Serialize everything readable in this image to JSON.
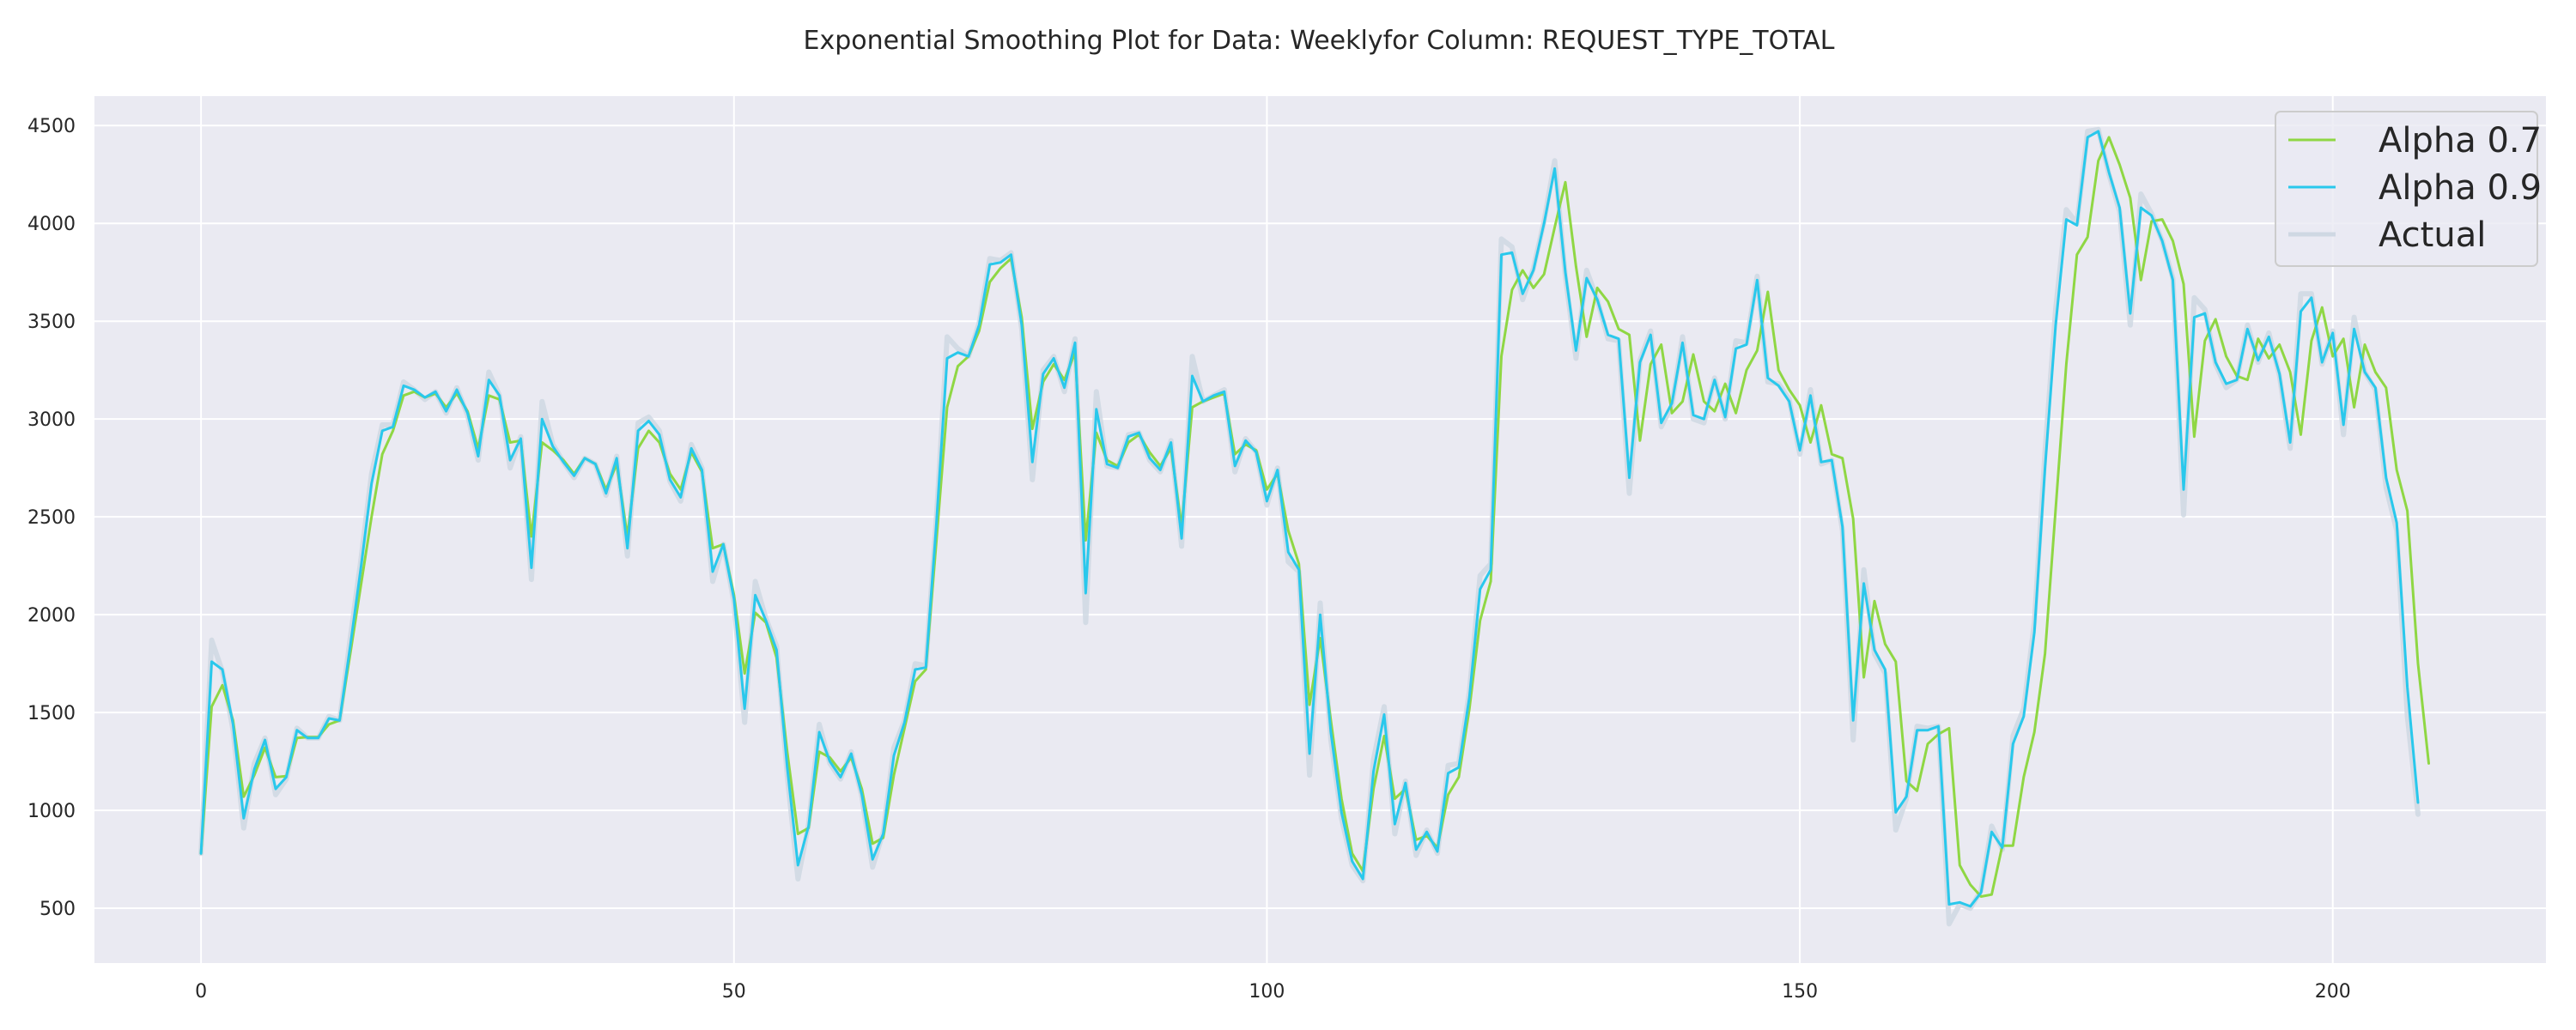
{
  "chart_data": {
    "type": "line",
    "title": "Exponential Smoothing Plot for Data: Weeklyfor Column: REQUEST_TYPE_TOTAL",
    "xlabel": "",
    "ylabel": "",
    "xlim": [
      -10,
      220
    ],
    "ylim": [
      220,
      4650
    ],
    "xticks": [
      0,
      50,
      100,
      150,
      200
    ],
    "yticks": [
      500,
      1000,
      1500,
      2000,
      2500,
      3000,
      3500,
      4000,
      4500
    ],
    "grid": true,
    "legend_position": "top-right",
    "background": "#EAEAF2",
    "series": [
      {
        "name": "Alpha 0.7",
        "color": "#8FD744",
        "values": [
          780,
          1530,
          1640,
          1460,
          1070,
          1180,
          1320,
          1170,
          1175,
          1370,
          1375,
          1375,
          1440,
          1460,
          1800,
          2150,
          2500,
          2820,
          2940,
          3120,
          3140,
          3110,
          3130,
          3060,
          3130,
          3040,
          2850,
          3120,
          3100,
          2880,
          2890,
          2400,
          2880,
          2840,
          2790,
          2720,
          2800,
          2770,
          2640,
          2770,
          2400,
          2850,
          2940,
          2880,
          2720,
          2640,
          2830,
          2730,
          2340,
          2360,
          2100,
          1700,
          2010,
          1960,
          1780,
          1300,
          880,
          910,
          1300,
          1270,
          1200,
          1270,
          1110,
          830,
          860,
          1180,
          1420,
          1660,
          1720,
          2380,
          3060,
          3270,
          3320,
          3450,
          3700,
          3770,
          3820,
          3520,
          2950,
          3190,
          3280,
          3200,
          3340,
          2380,
          2930,
          2790,
          2760,
          2880,
          2920,
          2830,
          2760,
          2850,
          2450,
          3060,
          3090,
          3110,
          3130,
          2820,
          2870,
          2840,
          2640,
          2720,
          2430,
          2260,
          1540,
          1880,
          1460,
          1060,
          780,
          690,
          1110,
          1380,
          1060,
          1110,
          850,
          870,
          810,
          1080,
          1170,
          1520,
          1970,
          2170,
          3320,
          3660,
          3760,
          3670,
          3740,
          3980,
          4210,
          3780,
          3420,
          3670,
          3600,
          3460,
          3430,
          2890,
          3280,
          3380,
          3030,
          3090,
          3330,
          3090,
          3040,
          3180,
          3030,
          3250,
          3350,
          3650,
          3250,
          3150,
          3070,
          2880,
          3070,
          2820,
          2800,
          2490,
          1680,
          2070,
          1850,
          1760,
          1150,
          1100,
          1340,
          1390,
          1420,
          720,
          620,
          560,
          570,
          820,
          820,
          1170,
          1400,
          1800,
          2540,
          3280,
          3840,
          3930,
          4320,
          4440,
          4300,
          4130,
          3710,
          4010,
          4020,
          3910,
          3690,
          2910,
          3400,
          3510,
          3320,
          3220,
          3200,
          3410,
          3310,
          3380,
          3240,
          2920,
          3400,
          3570,
          3320,
          3410,
          3060,
          3380,
          3240,
          3160,
          2740,
          2530,
          1750,
          1240
        ]
      },
      {
        "name": "Alpha 0.9",
        "color": "#29C8EC",
        "values": [
          780,
          1760,
          1720,
          1440,
          960,
          1210,
          1360,
          1110,
          1170,
          1410,
          1370,
          1370,
          1470,
          1460,
          1840,
          2240,
          2670,
          2940,
          2960,
          3170,
          3150,
          3110,
          3140,
          3040,
          3150,
          3030,
          2810,
          3200,
          3120,
          2790,
          2900,
          2240,
          3000,
          2860,
          2780,
          2710,
          2800,
          2770,
          2620,
          2800,
          2340,
          2940,
          2990,
          2920,
          2690,
          2600,
          2850,
          2740,
          2220,
          2360,
          2080,
          1520,
          2100,
          1970,
          1820,
          1220,
          720,
          920,
          1400,
          1250,
          1170,
          1290,
          1080,
          750,
          880,
          1280,
          1450,
          1720,
          1730,
          2470,
          3310,
          3340,
          3320,
          3480,
          3790,
          3800,
          3840,
          3480,
          2780,
          3230,
          3310,
          3160,
          3390,
          2110,
          3050,
          2770,
          2750,
          2910,
          2930,
          2800,
          2740,
          2880,
          2390,
          3220,
          3090,
          3120,
          3140,
          2760,
          2890,
          2830,
          2580,
          2740,
          2320,
          2230,
          1290,
          2000,
          1400,
          990,
          740,
          650,
          1200,
          1490,
          930,
          1140,
          800,
          890,
          790,
          1190,
          1220,
          1580,
          2130,
          2230,
          3840,
          3850,
          3640,
          3760,
          4000,
          4280,
          3750,
          3350,
          3720,
          3610,
          3430,
          3410,
          2700,
          3290,
          3430,
          2980,
          3080,
          3390,
          3020,
          3000,
          3200,
          3010,
          3360,
          3380,
          3710,
          3210,
          3170,
          3090,
          2840,
          3120,
          2780,
          2790,
          2450,
          1460,
          2160,
          1820,
          1720,
          990,
          1070,
          1410,
          1410,
          1430,
          520,
          530,
          510,
          580,
          890,
          810,
          1340,
          1480,
          1910,
          2750,
          3480,
          4020,
          3990,
          4440,
          4470,
          4260,
          4080,
          3540,
          4080,
          4040,
          3910,
          3710,
          2640,
          3520,
          3540,
          3290,
          3180,
          3200,
          3460,
          3300,
          3420,
          3230,
          2880,
          3550,
          3620,
          3290,
          3440,
          2970,
          3460,
          3240,
          3160,
          2700,
          2470,
          1630,
          1040
        ]
      },
      {
        "name": "Actual",
        "color": "#CFD8E3",
        "values": [
          780,
          1870,
          1710,
          1410,
          910,
          1240,
          1370,
          1080,
          1160,
          1420,
          1370,
          1370,
          1480,
          1460,
          1880,
          2280,
          2720,
          2970,
          2970,
          3190,
          3150,
          3100,
          3140,
          3030,
          3160,
          3020,
          2790,
          3240,
          3120,
          2750,
          2910,
          2180,
          3090,
          2870,
          2780,
          2700,
          2800,
          2770,
          2610,
          2810,
          2300,
          2980,
          3010,
          2940,
          2680,
          2580,
          2870,
          2750,
          2170,
          2360,
          2060,
          1450,
          2170,
          1980,
          1840,
          1180,
          650,
          930,
          1440,
          1240,
          1160,
          1300,
          1070,
          710,
          890,
          1320,
          1460,
          1750,
          1740,
          2500,
          3420,
          3360,
          3320,
          3490,
          3820,
          3810,
          3850,
          3460,
          2690,
          3250,
          3320,
          3140,
          3410,
          1960,
          3140,
          2760,
          2750,
          2920,
          2930,
          2790,
          2730,
          2890,
          2350,
          3320,
          3090,
          3120,
          3150,
          2730,
          2900,
          2830,
          2560,
          2750,
          2270,
          2220,
          1180,
          2060,
          1360,
          960,
          720,
          640,
          1260,
          1530,
          880,
          1150,
          770,
          900,
          780,
          1230,
          1240,
          1610,
          2200,
          2260,
          3920,
          3880,
          3610,
          3770,
          4010,
          4320,
          3730,
          3310,
          3760,
          3610,
          3410,
          3400,
          2620,
          3300,
          3450,
          2960,
          3070,
          3420,
          3000,
          2980,
          3210,
          3000,
          3400,
          3390,
          3730,
          3190,
          3180,
          3100,
          2820,
          3150,
          2770,
          2790,
          2430,
          1360,
          2230,
          1800,
          1700,
          900,
          1060,
          1430,
          1420,
          1430,
          420,
          520,
          500,
          590,
          920,
          800,
          1380,
          1520,
          1960,
          2830,
          3560,
          4070,
          4000,
          4470,
          4480,
          4250,
          4060,
          3480,
          4150,
          4050,
          3910,
          3720,
          2510,
          3620,
          3560,
          3280,
          3160,
          3200,
          3480,
          3290,
          3440,
          3220,
          2850,
          3640,
          3640,
          3280,
          3450,
          2920,
          3520,
          3240,
          3150,
          2650,
          2430,
          1480,
          980
        ]
      }
    ]
  }
}
